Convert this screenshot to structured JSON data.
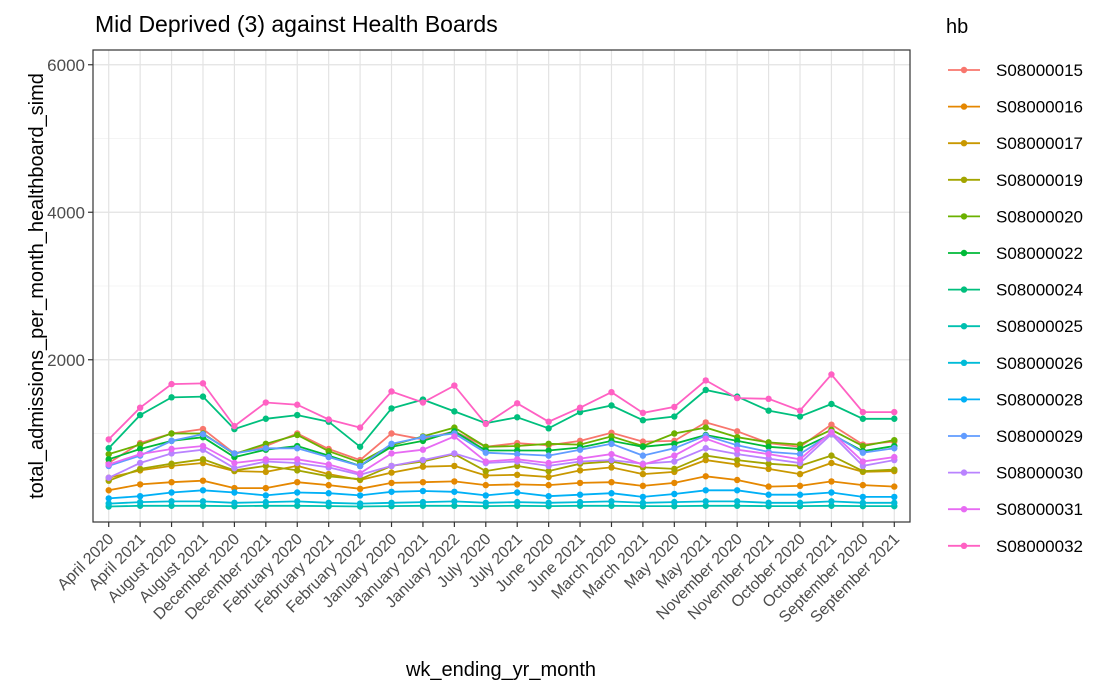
{
  "chart_data": {
    "type": "line",
    "title": "Mid Deprived (3) against Health Boards",
    "xlabel": "wk_ending_yr_month",
    "ylabel": "total_admissions_per_month_healthboard_simd",
    "ylim": [
      -200,
      6200
    ],
    "yticks": [
      2000,
      4000,
      6000
    ],
    "grid": true,
    "legend_title": "hb",
    "legend_position": "right",
    "categories": [
      "April 2020",
      "April 2021",
      "August 2020",
      "August 2021",
      "December 2020",
      "December 2021",
      "February 2020",
      "February 2021",
      "February 2022",
      "January 2020",
      "January 2021",
      "January 2022",
      "July 2020",
      "July 2021",
      "June 2020",
      "June 2021",
      "March 2020",
      "March 2021",
      "May 2020",
      "May 2021",
      "November 2020",
      "November 2021",
      "October 2020",
      "October 2021",
      "September 2020",
      "September 2021"
    ],
    "series": [
      {
        "name": "S08000015",
        "color": "#F8766D",
        "values": [
          600,
          870,
          1000,
          1060,
          730,
          830,
          1000,
          790,
          640,
          1000,
          920,
          1030,
          820,
          870,
          840,
          900,
          1010,
          890,
          900,
          1150,
          1030,
          870,
          820,
          1120,
          850,
          890
        ]
      },
      {
        "name": "S08000016",
        "color": "#E58700",
        "values": [
          230,
          310,
          340,
          360,
          260,
          260,
          340,
          300,
          250,
          330,
          340,
          350,
          300,
          310,
          300,
          330,
          340,
          290,
          330,
          420,
          370,
          280,
          290,
          350,
          300,
          280
        ]
      },
      {
        "name": "S08000017",
        "color": "#C99800",
        "values": [
          400,
          500,
          560,
          600,
          490,
          480,
          560,
          450,
          370,
          470,
          550,
          560,
          430,
          440,
          410,
          500,
          540,
          450,
          480,
          640,
          580,
          520,
          450,
          600,
          480,
          490
        ]
      },
      {
        "name": "S08000019",
        "color": "#A3A500",
        "values": [
          360,
          520,
          590,
          650,
          500,
          560,
          500,
          420,
          380,
          560,
          620,
          720,
          490,
          560,
          490,
          590,
          620,
          540,
          520,
          700,
          640,
          590,
          560,
          700,
          490,
          510
        ]
      },
      {
        "name": "S08000020",
        "color": "#6BB100",
        "values": [
          720,
          850,
          1000,
          1000,
          720,
          860,
          980,
          760,
          610,
          840,
          960,
          1080,
          820,
          830,
          860,
          850,
          960,
          830,
          1000,
          1080,
          950,
          880,
          850,
          1050,
          830,
          910
        ]
      },
      {
        "name": "S08000022",
        "color": "#00BA38",
        "values": [
          650,
          790,
          900,
          950,
          680,
          780,
          830,
          700,
          560,
          820,
          900,
          1030,
          770,
          770,
          770,
          810,
          900,
          820,
          860,
          980,
          900,
          820,
          790,
          990,
          760,
          830
        ]
      },
      {
        "name": "S08000024",
        "color": "#00BF7D",
        "values": [
          800,
          1250,
          1490,
          1500,
          1060,
          1200,
          1250,
          1160,
          820,
          1340,
          1460,
          1300,
          1140,
          1220,
          1070,
          1290,
          1380,
          1180,
          1230,
          1590,
          1500,
          1310,
          1230,
          1400,
          1200,
          1200
        ]
      },
      {
        "name": "S08000025",
        "color": "#00C0AF",
        "values": [
          10,
          20,
          20,
          20,
          15,
          20,
          20,
          15,
          10,
          15,
          20,
          20,
          15,
          20,
          15,
          20,
          20,
          15,
          15,
          20,
          20,
          15,
          15,
          20,
          15,
          15
        ]
      },
      {
        "name": "S08000026",
        "color": "#00BCD8",
        "values": [
          50,
          70,
          80,
          80,
          60,
          70,
          80,
          60,
          50,
          60,
          70,
          80,
          60,
          70,
          60,
          70,
          80,
          60,
          70,
          80,
          80,
          60,
          60,
          80,
          60,
          60
        ]
      },
      {
        "name": "S08000028",
        "color": "#00B0F6",
        "values": [
          120,
          150,
          200,
          230,
          200,
          160,
          200,
          190,
          160,
          210,
          220,
          210,
          160,
          200,
          150,
          170,
          190,
          140,
          180,
          230,
          230,
          170,
          170,
          200,
          140,
          140
        ]
      },
      {
        "name": "S08000029",
        "color": "#619CFF",
        "values": [
          560,
          700,
          900,
          990,
          730,
          800,
          800,
          680,
          560,
          860,
          950,
          1000,
          740,
          720,
          700,
          780,
          860,
          700,
          800,
          970,
          840,
          750,
          720,
          1000,
          740,
          800
        ]
      },
      {
        "name": "S08000030",
        "color": "#B983FF",
        "values": [
          400,
          600,
          730,
          780,
          530,
          620,
          600,
          540,
          440,
          560,
          640,
          730,
          600,
          620,
          560,
          620,
          640,
          590,
          620,
          800,
          720,
          660,
          600,
          990,
          560,
          640
        ]
      },
      {
        "name": "S08000031",
        "color": "#E76BF3",
        "values": [
          580,
          720,
          790,
          830,
          600,
          650,
          650,
          580,
          460,
          730,
          780,
          960,
          620,
          650,
          600,
          660,
          720,
          580,
          700,
          930,
          780,
          720,
          650,
          1020,
          620,
          680
        ]
      },
      {
        "name": "S08000032",
        "color": "#FF61C3",
        "values": [
          920,
          1350,
          1670,
          1680,
          1100,
          1420,
          1390,
          1190,
          1080,
          1570,
          1420,
          1650,
          1130,
          1410,
          1160,
          1350,
          1560,
          1280,
          1360,
          1720,
          1480,
          1470,
          1310,
          1800,
          1290,
          1290
        ]
      }
    ]
  }
}
